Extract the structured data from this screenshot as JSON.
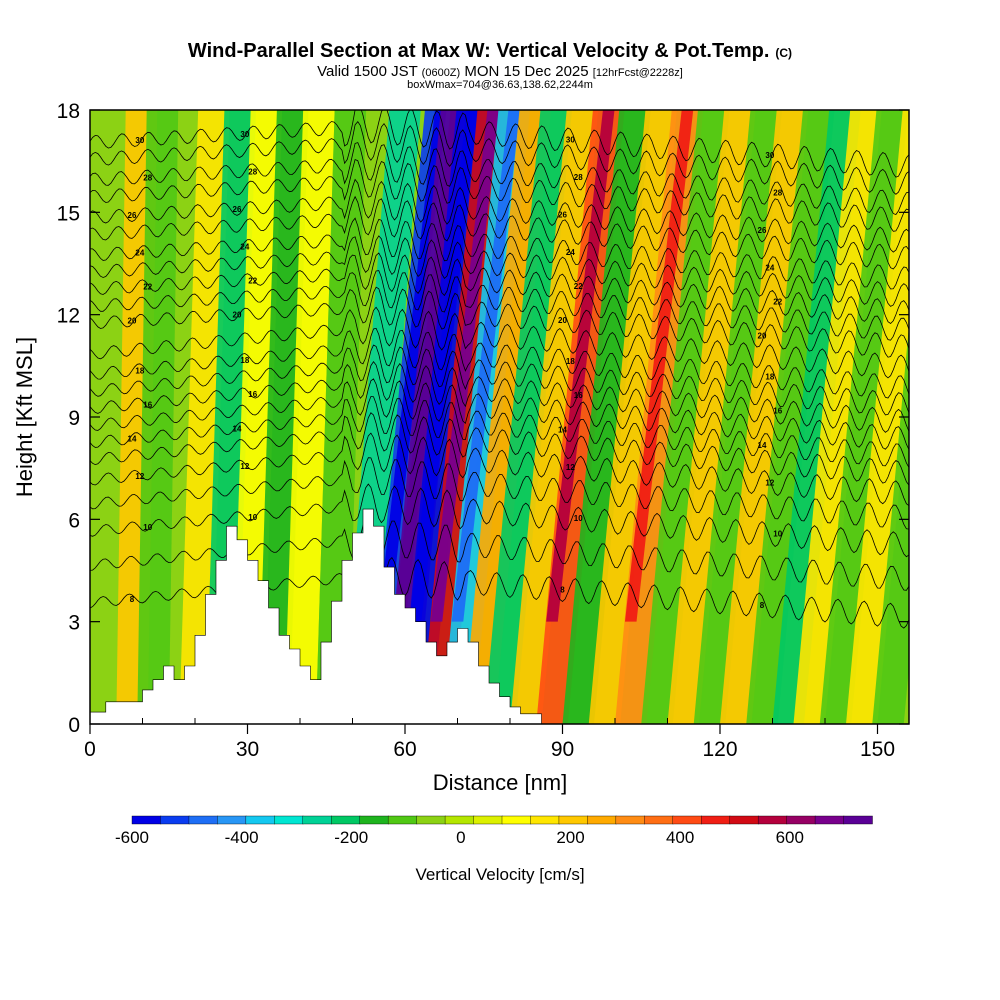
{
  "chart_data": {
    "type": "heatmap",
    "title": "Wind-Parallel Section at Max W: Vertical Velocity & Pot.Temp.",
    "title_mark": "(C)",
    "subtitle_valid": "Valid 1500 JST",
    "subtitle_utc": "(0600Z)",
    "subtitle_date": "MON 15 Dec 2025",
    "subtitle_fcst": "[12hrFcst@2228z]",
    "box_info": "boxWmax=704@36.63,138.62,2244m",
    "xlabel": "Distance [nm]",
    "ylabel": "Height [Kft MSL]",
    "xlim": [
      0,
      156
    ],
    "ylim": [
      0,
      18
    ],
    "x_ticks": [
      "0",
      "30",
      "60",
      "90",
      "120",
      "150"
    ],
    "y_ticks": [
      "0",
      "3",
      "6",
      "9",
      "12",
      "15",
      "18"
    ],
    "colorbar": {
      "title": "Vertical Velocity [cm/s]",
      "range": [
        -600,
        750
      ],
      "tick_labels": [
        "-600",
        "-400",
        "-200",
        "0",
        "200",
        "400",
        "600"
      ],
      "colors": [
        "#0000e6",
        "#0a3cf0",
        "#1e6ef5",
        "#2896f5",
        "#14c8f0",
        "#00e6d2",
        "#00d296",
        "#00c864",
        "#1eb41e",
        "#50c814",
        "#8cd214",
        "#b4e600",
        "#dcf000",
        "#ffff00",
        "#ffe600",
        "#ffc800",
        "#ffaa00",
        "#ff8c14",
        "#ff6e14",
        "#ff4b14",
        "#f01e14",
        "#d20a14",
        "#b4003c",
        "#960064",
        "#78008c",
        "#5a0096"
      ]
    },
    "terrain_kft": [
      [
        0,
        0.35
      ],
      [
        3,
        0.35
      ],
      [
        3,
        0.65
      ],
      [
        10,
        0.65
      ],
      [
        10,
        1.0
      ],
      [
        12,
        1.0
      ],
      [
        12,
        1.3
      ],
      [
        14,
        1.3
      ],
      [
        14,
        1.7
      ],
      [
        16,
        1.7
      ],
      [
        16,
        1.3
      ],
      [
        18,
        1.3
      ],
      [
        18,
        1.7
      ],
      [
        20,
        1.7
      ],
      [
        20,
        2.6
      ],
      [
        22,
        2.6
      ],
      [
        22,
        3.8
      ],
      [
        24,
        3.8
      ],
      [
        24,
        4.8
      ],
      [
        26,
        4.8
      ],
      [
        26,
        5.8
      ],
      [
        28,
        5.8
      ],
      [
        28,
        5.4
      ],
      [
        30,
        5.4
      ],
      [
        30,
        4.8
      ],
      [
        32,
        4.8
      ],
      [
        32,
        4.2
      ],
      [
        34,
        4.2
      ],
      [
        34,
        3.4
      ],
      [
        36,
        3.4
      ],
      [
        36,
        2.6
      ],
      [
        38,
        2.6
      ],
      [
        38,
        2.2
      ],
      [
        40,
        2.2
      ],
      [
        40,
        1.7
      ],
      [
        42,
        1.7
      ],
      [
        42,
        1.3
      ],
      [
        44,
        1.3
      ],
      [
        44,
        2.4
      ],
      [
        46,
        2.4
      ],
      [
        46,
        3.6
      ],
      [
        48,
        3.6
      ],
      [
        48,
        4.8
      ],
      [
        50,
        4.8
      ],
      [
        50,
        5.6
      ],
      [
        52,
        5.6
      ],
      [
        52,
        6.3
      ],
      [
        54,
        6.3
      ],
      [
        54,
        5.8
      ],
      [
        56,
        5.8
      ],
      [
        56,
        4.6
      ],
      [
        58,
        4.6
      ],
      [
        58,
        3.8
      ],
      [
        60,
        3.8
      ],
      [
        60,
        3.4
      ],
      [
        62,
        3.4
      ],
      [
        62,
        3.0
      ],
      [
        64,
        3.0
      ],
      [
        64,
        2.4
      ],
      [
        66,
        2.4
      ],
      [
        66,
        2.0
      ],
      [
        68,
        2.0
      ],
      [
        68,
        2.4
      ],
      [
        70,
        2.4
      ],
      [
        70,
        2.8
      ],
      [
        72,
        2.8
      ],
      [
        72,
        2.4
      ],
      [
        74,
        2.4
      ],
      [
        74,
        1.7
      ],
      [
        76,
        1.7
      ],
      [
        76,
        1.2
      ],
      [
        78,
        1.2
      ],
      [
        78,
        0.8
      ],
      [
        80,
        0.8
      ],
      [
        80,
        0.5
      ],
      [
        82,
        0.5
      ],
      [
        82,
        0.3
      ],
      [
        86,
        0.3
      ],
      [
        86,
        0.0
      ]
    ],
    "wave_bands": [
      {
        "x": 8,
        "w": 200,
        "tilt": 0.1
      },
      {
        "x": 12,
        "w": -100,
        "tilt": 0.1
      },
      {
        "x": 20,
        "w": 150,
        "tilt": 0.2
      },
      {
        "x": 25,
        "w": -200,
        "tilt": 0.2
      },
      {
        "x": 30,
        "w": 100,
        "tilt": 0.2
      },
      {
        "x": 35,
        "w": -150,
        "tilt": 0.2
      },
      {
        "x": 40,
        "w": 100,
        "tilt": 0.2
      },
      {
        "x": 46,
        "w": -100,
        "tilt": 0.2
      },
      {
        "x": 51,
        "w": -250,
        "tilt": 0.5
      },
      {
        "x": 56,
        "w": -500,
        "tilt": 0.6
      },
      {
        "x": 59,
        "w": 700,
        "tilt": 0.6
      },
      {
        "x": 62,
        "w": -600,
        "tilt": 0.6
      },
      {
        "x": 66,
        "w": 500,
        "tilt": 0.6
      },
      {
        "x": 70,
        "w": -350,
        "tilt": 0.6
      },
      {
        "x": 74,
        "w": 250,
        "tilt": 0.6
      },
      {
        "x": 78,
        "w": -200,
        "tilt": 0.6
      },
      {
        "x": 83,
        "w": 200,
        "tilt": 0.6
      },
      {
        "x": 88,
        "w": 400,
        "tilt": 0.6
      },
      {
        "x": 93,
        "w": -150,
        "tilt": 0.6
      },
      {
        "x": 98,
        "w": 200,
        "tilt": 0.6
      },
      {
        "x": 103,
        "w": 300,
        "tilt": 0.6
      },
      {
        "x": 108,
        "w": -100,
        "tilt": 0.6
      },
      {
        "x": 113,
        "w": 200,
        "tilt": 0.6
      },
      {
        "x": 118,
        "w": -100,
        "tilt": 0.6
      },
      {
        "x": 123,
        "w": 200,
        "tilt": 0.6
      },
      {
        "x": 128,
        "w": -100,
        "tilt": 0.6
      },
      {
        "x": 133,
        "w": -200,
        "tilt": 0.6
      },
      {
        "x": 137,
        "w": 150,
        "tilt": 0.6
      },
      {
        "x": 142,
        "w": -100,
        "tilt": 0.6
      },
      {
        "x": 147,
        "w": 150,
        "tilt": 0.6
      },
      {
        "x": 152,
        "w": -100,
        "tilt": 0.6
      }
    ],
    "theta_levels": [
      {
        "base": 4.3,
        "step": 0,
        "label": "8"
      },
      {
        "base": 5.4,
        "step": 1,
        "label": ""
      },
      {
        "base": 6.4,
        "step": 2,
        "label": "10"
      },
      {
        "base": 7.2,
        "step": 3,
        "label": ""
      },
      {
        "base": 7.9,
        "step": 4,
        "label": "12"
      },
      {
        "base": 8.5,
        "step": 5,
        "label": ""
      },
      {
        "base": 9.0,
        "step": 6,
        "label": "14"
      },
      {
        "base": 9.5,
        "step": 7,
        "label": ""
      },
      {
        "base": 10.0,
        "step": 8,
        "label": "16"
      },
      {
        "base": 10.5,
        "step": 9,
        "label": ""
      },
      {
        "base": 11.0,
        "step": 10,
        "label": "18"
      },
      {
        "base": 11.6,
        "step": 11,
        "label": ""
      },
      {
        "base": 12.2,
        "step": 12,
        "label": "20"
      },
      {
        "base": 12.7,
        "step": 13,
        "label": ""
      },
      {
        "base": 13.2,
        "step": 14,
        "label": "22"
      },
      {
        "base": 13.7,
        "step": 15,
        "label": ""
      },
      {
        "base": 14.2,
        "step": 16,
        "label": "24"
      },
      {
        "base": 14.8,
        "step": 17,
        "label": ""
      },
      {
        "base": 15.3,
        "step": 18,
        "label": "26"
      },
      {
        "base": 15.9,
        "step": 19,
        "label": ""
      },
      {
        "base": 16.4,
        "step": 20,
        "label": "28"
      },
      {
        "base": 17.0,
        "step": 21,
        "label": ""
      },
      {
        "base": 17.5,
        "step": 22,
        "label": "30"
      }
    ]
  }
}
